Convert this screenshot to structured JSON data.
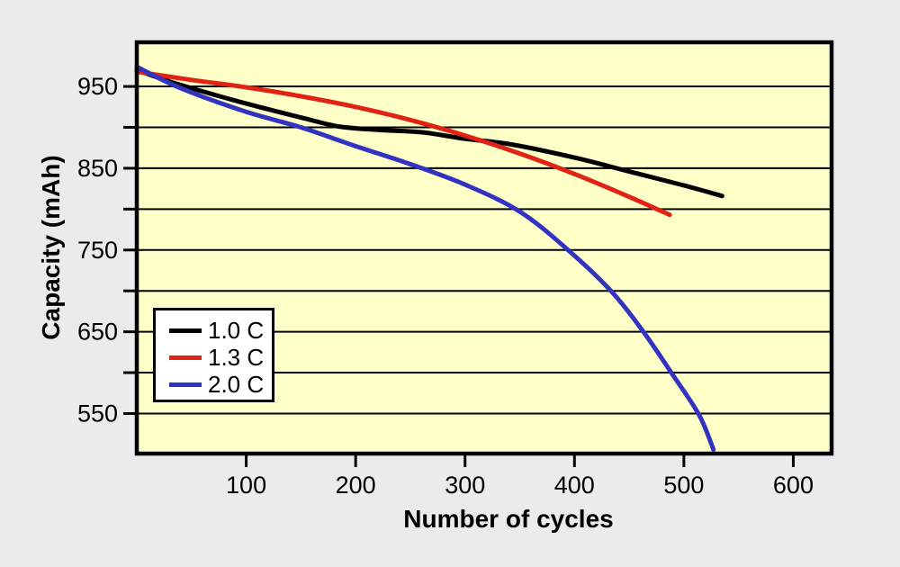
{
  "page": {
    "background_color": "#ebebeb"
  },
  "chart_data": {
    "type": "line",
    "title": "",
    "xlabel": "Number of cycles",
    "ylabel": "Capacity (mAh)",
    "xlim": [
      0,
      635
    ],
    "ylim": [
      501,
      1004
    ],
    "x_ticks": [
      100,
      200,
      300,
      400,
      500,
      600
    ],
    "y_gridlines": [
      550,
      600,
      650,
      700,
      750,
      800,
      850,
      900,
      950
    ],
    "y_tick_labels": [
      550,
      650,
      750,
      850,
      950
    ],
    "grid": "horizontal-only",
    "plot_bg": "#ffffc8",
    "border_color": "#000000",
    "gridline_color": "#000000",
    "legend_position": "lower-left",
    "legend_bg": "#ffffff",
    "series": [
      {
        "name": "1.0 C",
        "color": "#000000",
        "points": [
          [
            0,
            970
          ],
          [
            30,
            956
          ],
          [
            60,
            944
          ],
          [
            100,
            929
          ],
          [
            150,
            912
          ],
          [
            185,
            901
          ],
          [
            220,
            897
          ],
          [
            260,
            894
          ],
          [
            300,
            886
          ],
          [
            343,
            879
          ],
          [
            400,
            863
          ],
          [
            450,
            846
          ],
          [
            500,
            829
          ],
          [
            535,
            816
          ]
        ]
      },
      {
        "name": "1.3 C",
        "color": "#e02315",
        "points": [
          [
            0,
            968
          ],
          [
            50,
            958
          ],
          [
            100,
            949
          ],
          [
            150,
            938
          ],
          [
            200,
            925
          ],
          [
            250,
            909
          ],
          [
            300,
            890
          ],
          [
            350,
            868
          ],
          [
            400,
            843
          ],
          [
            450,
            815
          ],
          [
            487,
            793
          ]
        ]
      },
      {
        "name": "2.0 C",
        "color": "#3333c2",
        "points": [
          [
            0,
            974
          ],
          [
            40,
            948
          ],
          [
            100,
            919
          ],
          [
            150,
            900
          ],
          [
            200,
            877
          ],
          [
            250,
            855
          ],
          [
            300,
            830
          ],
          [
            350,
            797
          ],
          [
            395,
            749
          ],
          [
            434,
            699
          ],
          [
            463,
            650
          ],
          [
            490,
            597
          ],
          [
            514,
            548
          ],
          [
            527,
            506
          ]
        ]
      }
    ]
  }
}
